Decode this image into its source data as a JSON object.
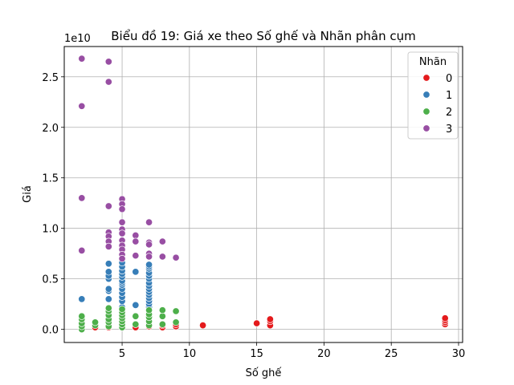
{
  "chart_data": {
    "type": "scatter",
    "title": "Biểu đồ 19: Giá xe theo Số ghế và Nhãn phân cụm",
    "xlabel": "Số ghế",
    "ylabel": "Giá",
    "y_offset_label": "1e10",
    "xlim": [
      0.7,
      30.3
    ],
    "ylim": [
      -0.13,
      2.8
    ],
    "y_scale_multiplier": 10000000000,
    "x_ticks": [
      5,
      10,
      15,
      20,
      25,
      30
    ],
    "x_tick_labels": [
      "5",
      "10",
      "15",
      "20",
      "25",
      "30"
    ],
    "y_ticks": [
      0,
      0.5,
      1.0,
      1.5,
      2.0,
      2.5
    ],
    "y_tick_labels": [
      "0.0",
      "0.5",
      "1.0",
      "1.5",
      "2.0",
      "2.5"
    ],
    "grid": true,
    "legend": {
      "title": "Nhãn",
      "placement": "top-right",
      "labels": [
        "0",
        "1",
        "2",
        "3"
      ]
    },
    "colors": [
      "#e41a1c",
      "#377eb8",
      "#4daf4a",
      "#984ea3"
    ],
    "series": [
      {
        "name": "0",
        "points": [
          [
            2,
            0.01
          ],
          [
            2,
            0.03
          ],
          [
            3,
            0.02
          ],
          [
            4,
            0.02
          ],
          [
            4,
            0.04
          ],
          [
            5,
            0.02
          ],
          [
            5,
            0.05
          ],
          [
            6,
            0.02
          ],
          [
            7,
            0.03
          ],
          [
            7,
            0.05
          ],
          [
            8,
            0.02
          ],
          [
            8,
            0.04
          ],
          [
            9,
            0.03
          ],
          [
            9,
            0.05
          ],
          [
            11,
            0.04
          ],
          [
            15,
            0.06
          ],
          [
            16,
            0.04
          ],
          [
            16,
            0.08
          ],
          [
            16,
            0.1
          ],
          [
            29,
            0.05
          ],
          [
            29,
            0.07
          ],
          [
            29,
            0.09
          ],
          [
            29,
            0.11
          ]
        ]
      },
      {
        "name": "1",
        "points": [
          [
            2,
            0.3
          ],
          [
            4,
            0.3
          ],
          [
            4,
            0.38
          ],
          [
            4,
            0.4
          ],
          [
            4,
            0.5
          ],
          [
            4,
            0.53
          ],
          [
            4,
            0.57
          ],
          [
            4,
            0.65
          ],
          [
            5,
            0.22
          ],
          [
            5,
            0.28
          ],
          [
            5,
            0.32
          ],
          [
            5,
            0.36
          ],
          [
            5,
            0.4
          ],
          [
            5,
            0.44
          ],
          [
            5,
            0.46
          ],
          [
            5,
            0.48
          ],
          [
            5,
            0.52
          ],
          [
            5,
            0.55
          ],
          [
            5,
            0.58
          ],
          [
            5,
            0.62
          ],
          [
            5,
            0.66
          ],
          [
            6,
            0.24
          ],
          [
            6,
            0.57
          ],
          [
            7,
            0.22
          ],
          [
            7,
            0.25
          ],
          [
            7,
            0.28
          ],
          [
            7,
            0.31
          ],
          [
            7,
            0.34
          ],
          [
            7,
            0.37
          ],
          [
            7,
            0.4
          ],
          [
            7,
            0.43
          ],
          [
            7,
            0.46
          ],
          [
            7,
            0.5
          ],
          [
            7,
            0.53
          ],
          [
            7,
            0.56
          ],
          [
            7,
            0.6
          ],
          [
            7,
            0.62
          ],
          [
            7,
            0.64
          ]
        ]
      },
      {
        "name": "2",
        "points": [
          [
            2,
            0.0
          ],
          [
            2,
            0.03
          ],
          [
            2,
            0.06
          ],
          [
            2,
            0.1
          ],
          [
            2,
            0.13
          ],
          [
            3,
            0.04
          ],
          [
            3,
            0.07
          ],
          [
            4,
            0.03
          ],
          [
            4,
            0.07
          ],
          [
            4,
            0.1
          ],
          [
            4,
            0.14
          ],
          [
            4,
            0.18
          ],
          [
            4,
            0.21
          ],
          [
            5,
            0.02
          ],
          [
            5,
            0.05
          ],
          [
            5,
            0.08
          ],
          [
            5,
            0.11
          ],
          [
            5,
            0.14
          ],
          [
            5,
            0.17
          ],
          [
            5,
            0.2
          ],
          [
            6,
            0.05
          ],
          [
            6,
            0.13
          ],
          [
            7,
            0.04
          ],
          [
            7,
            0.08
          ],
          [
            7,
            0.12
          ],
          [
            7,
            0.15
          ],
          [
            7,
            0.19
          ],
          [
            8,
            0.05
          ],
          [
            8,
            0.13
          ],
          [
            8,
            0.19
          ],
          [
            9,
            0.07
          ],
          [
            9,
            0.18
          ]
        ]
      },
      {
        "name": "3",
        "points": [
          [
            2,
            2.68
          ],
          [
            2,
            2.21
          ],
          [
            2,
            1.3
          ],
          [
            2,
            0.78
          ],
          [
            4,
            2.65
          ],
          [
            4,
            2.45
          ],
          [
            4,
            1.22
          ],
          [
            4,
            0.96
          ],
          [
            4,
            0.92
          ],
          [
            4,
            0.87
          ],
          [
            4,
            0.82
          ],
          [
            5,
            1.29
          ],
          [
            5,
            1.24
          ],
          [
            5,
            1.19
          ],
          [
            5,
            1.06
          ],
          [
            5,
            0.99
          ],
          [
            5,
            0.95
          ],
          [
            5,
            0.88
          ],
          [
            5,
            0.83
          ],
          [
            5,
            0.79
          ],
          [
            5,
            0.74
          ],
          [
            5,
            0.7
          ],
          [
            6,
            0.93
          ],
          [
            6,
            0.87
          ],
          [
            6,
            0.73
          ],
          [
            7,
            1.06
          ],
          [
            7,
            0.86
          ],
          [
            7,
            0.84
          ],
          [
            7,
            0.75
          ],
          [
            7,
            0.72
          ],
          [
            8,
            0.87
          ],
          [
            8,
            0.72
          ],
          [
            9,
            0.71
          ]
        ]
      }
    ]
  }
}
